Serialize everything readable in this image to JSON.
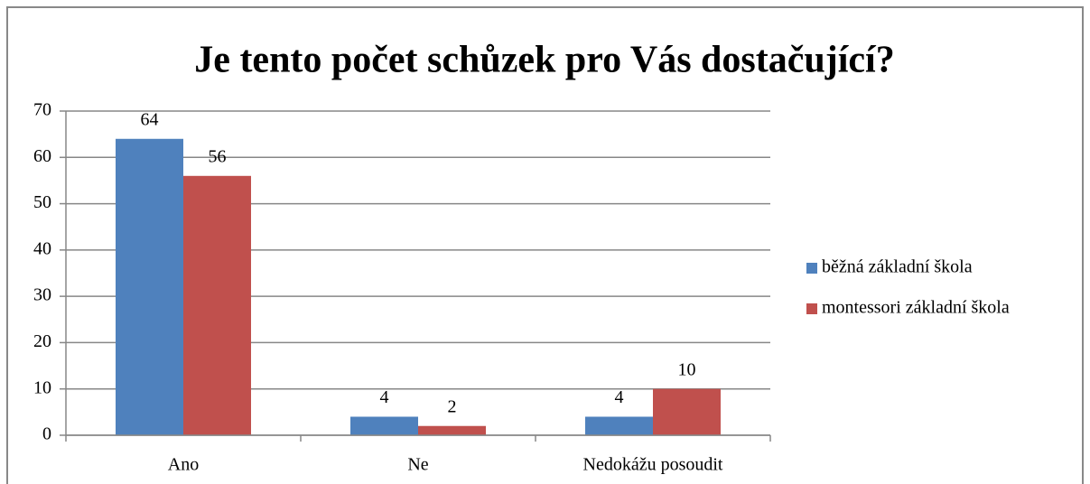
{
  "chart_data": {
    "type": "bar",
    "title": "Je tento počet schůzek pro Vás dostačující?",
    "categories": [
      "Ano",
      "Ne",
      "Nedokážu posoudit"
    ],
    "series": [
      {
        "name": "běžná základní škola",
        "color": "#4f81bd",
        "values": [
          64,
          4,
          4
        ]
      },
      {
        "name": "montessori základní škola",
        "color": "#c0504d",
        "values": [
          56,
          2,
          10
        ]
      }
    ],
    "ylim": [
      0,
      70
    ],
    "yticks": [
      0,
      10,
      20,
      30,
      40,
      50,
      60,
      70
    ],
    "grid": true,
    "legend": "right"
  }
}
